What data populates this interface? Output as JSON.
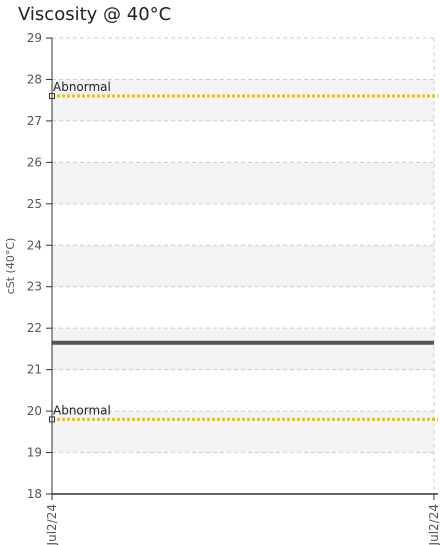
{
  "chart_data": {
    "type": "line",
    "title": "Viscosity @ 40°C",
    "ylabel": "cSt (40°C)",
    "xlabel": "",
    "ylim": [
      18,
      29
    ],
    "yticks": [
      18,
      19,
      20,
      21,
      22,
      23,
      24,
      25,
      26,
      27,
      28,
      29
    ],
    "categories": [
      "Jul2/24",
      "Jul2/24"
    ],
    "series": [
      {
        "values": [
          21.65,
          21.65
        ],
        "color": "#555555"
      }
    ],
    "thresholds": [
      {
        "label": "Abnormal",
        "value": 27.6,
        "color": "#e8c300"
      },
      {
        "label": "Abnormal",
        "value": 19.8,
        "color": "#e8c300"
      }
    ],
    "grid": true
  }
}
